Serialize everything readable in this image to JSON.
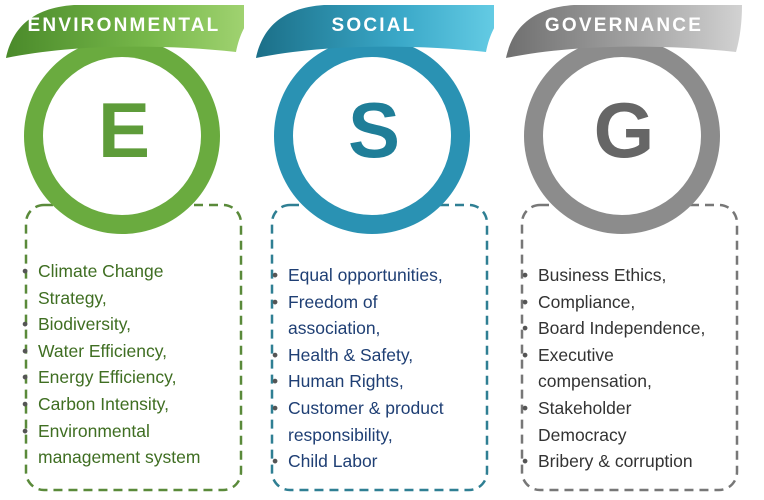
{
  "pillars": [
    {
      "header": "ENVIRONMENTAL",
      "letter": "E",
      "items": [
        "Climate Change",
        "Strategy,",
        "Biodiversity,",
        "Water Efficiency,",
        "Energy Efficiency,",
        "Carbon Intensity,",
        "Environmental",
        "management system"
      ],
      "bullet_rows": [
        true,
        false,
        true,
        true,
        true,
        true,
        true,
        false
      ],
      "colors": {
        "band_dark": "#4a8a2a",
        "band_light": "#a9d879",
        "ring": "#6aab3f",
        "letter": "#5e9c3a",
        "text": "#3f6e22",
        "dash": "#5a8a3a"
      }
    },
    {
      "header": "SOCIAL",
      "letter": "S",
      "items": [
        "Equal opportunities,",
        "Freedom of",
        "association,",
        "Health & Safety,",
        "Human Rights,",
        "Customer & product",
        "responsibility,",
        "Child Labor"
      ],
      "bullet_rows": [
        true,
        true,
        false,
        true,
        true,
        true,
        false,
        true
      ],
      "colors": {
        "band_dark": "#1b6f88",
        "band_light": "#6dd3ea",
        "ring": "#2a92b3",
        "letter": "#1f7e98",
        "text": "#1f3f74",
        "dash": "#2f7f93"
      }
    },
    {
      "header": "GOVERNANCE",
      "letter": "G",
      "items": [
        "Business Ethics,",
        "Compliance,",
        "Board Independence,",
        "Executive",
        "compensation,",
        "Stakeholder",
        "Democracy",
        "Bribery & corruption"
      ],
      "bullet_rows": [
        true,
        true,
        true,
        true,
        false,
        true,
        false,
        true
      ],
      "colors": {
        "band_dark": "#6f6f6f",
        "band_light": "#d2d2d2",
        "ring": "#8c8c8c",
        "letter": "#666666",
        "text": "#333333",
        "dash": "#777777"
      }
    }
  ]
}
